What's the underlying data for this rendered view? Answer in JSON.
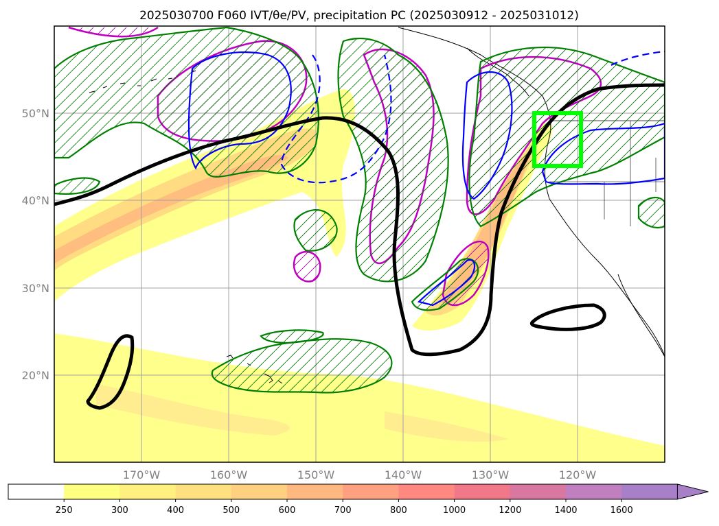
{
  "title": "2025030700 F060 IVT/θe/PV, precipitation PC (2025030912 - 2025031012)",
  "map": {
    "lat_ticks": [
      "50°N",
      "40°N",
      "30°N",
      "20°N"
    ],
    "lon_ticks": [
      "170°W",
      "160°W",
      "150°W",
      "140°W",
      "130°W",
      "120°W"
    ],
    "lat_range": [
      10,
      60
    ],
    "lon_range": [
      -180,
      -110
    ],
    "grid": true,
    "highlight_box": {
      "lon": [
        -125,
        -120
      ],
      "lat": [
        44,
        50
      ],
      "color": "#00ff00"
    }
  },
  "colorbar": {
    "ticks": [
      "250",
      "300",
      "400",
      "500",
      "600",
      "700",
      "800",
      "1000",
      "1200",
      "1400",
      "1600"
    ],
    "colors": [
      "#ffffff",
      "#ffff80",
      "#fff080",
      "#ffe080",
      "#ffd080",
      "#ffb880",
      "#ffa080",
      "#ff8880",
      "#f07888",
      "#d878a0",
      "#c080c0",
      "#a880c8"
    ],
    "extend": "max"
  },
  "colors": {
    "pv_contour": "#000000",
    "thetae_green": "#008000",
    "blue_contour": "#0000ff",
    "magenta_contour": "#c000c0"
  }
}
